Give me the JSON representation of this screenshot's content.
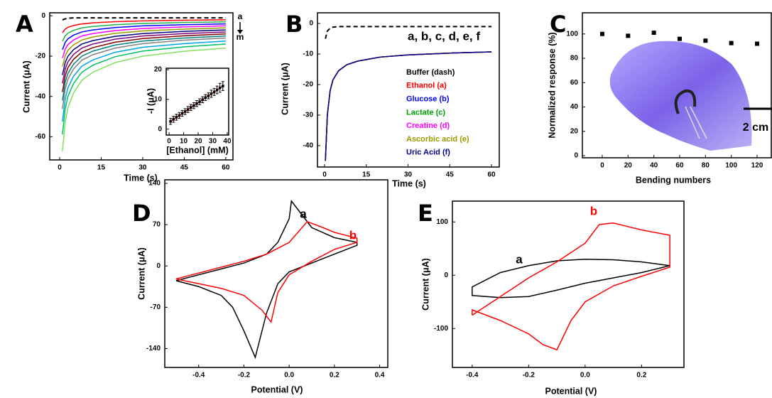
{
  "chart_data": [
    {
      "type": "line",
      "panel": "A",
      "xlabel": "Time (s)",
      "ylabel": "Current (μA)",
      "xlim": [
        -3.6,
        62.6
      ],
      "ylim": [
        -71.5,
        1.5
      ],
      "xticks": [
        0,
        15,
        30,
        45,
        60
      ],
      "yticks": [
        0,
        -20,
        -40,
        -60
      ],
      "x": [
        1,
        2,
        3,
        5,
        8,
        12,
        20,
        30,
        45,
        60
      ],
      "series": [
        {
          "color": "#000000",
          "dash": true,
          "values": [
            -2,
            -1.5,
            -1.2,
            -1,
            -1,
            -1,
            -1,
            -1,
            -1,
            -1
          ]
        },
        {
          "color": "#ff0000",
          "values": [
            -8.4,
            -6.6,
            -5.7,
            -4.8,
            -4.0,
            -3.5,
            -2.9,
            -2.5,
            -2.2,
            -2
          ]
        },
        {
          "color": "#22b14c",
          "values": [
            -12.6,
            -9.9,
            -8.6,
            -7.2,
            -6.0,
            -5.3,
            -4.4,
            -3.8,
            -3.3,
            -3
          ]
        },
        {
          "color": "#0000ff",
          "values": [
            -16.8,
            -13.2,
            -11.4,
            -9.6,
            -8.0,
            -7.0,
            -5.8,
            -5.0,
            -4.4,
            -4
          ]
        },
        {
          "color": "#ff00ff",
          "values": [
            -21,
            -16.5,
            -14.3,
            -12,
            -10,
            -8.8,
            -7.3,
            -6.3,
            -5.5,
            -5
          ]
        },
        {
          "color": "#999900",
          "values": [
            -25.2,
            -19.8,
            -17.1,
            -14.4,
            -12,
            -10.5,
            -8.7,
            -7.5,
            -6.6,
            -6
          ]
        },
        {
          "color": "#000080",
          "values": [
            -29.4,
            -23.1,
            -20,
            -16.8,
            -14,
            -12.3,
            -10.2,
            -8.8,
            -7.7,
            -7
          ]
        },
        {
          "color": "#7f007f",
          "values": [
            -33.6,
            -26.4,
            -22.8,
            -19.2,
            -16,
            -14,
            -11.6,
            -10,
            -8.8,
            -8
          ]
        },
        {
          "color": "#7f0000",
          "values": [
            -37.8,
            -29.7,
            -25.7,
            -21.6,
            -18,
            -15.8,
            -13.1,
            -11.3,
            -9.9,
            -9
          ]
        },
        {
          "color": "#008080",
          "values": [
            -42,
            -33,
            -28.5,
            -24,
            -20,
            -17.5,
            -14.5,
            -12.5,
            -11,
            -10
          ]
        },
        {
          "color": "#808080",
          "values": [
            -46.2,
            -36.3,
            -31.4,
            -26.4,
            -22,
            -19.3,
            -16,
            -13.8,
            -12.1,
            -11
          ]
        },
        {
          "color": "#00a2e8",
          "values": [
            -52.5,
            -41.3,
            -35.6,
            -30,
            -25,
            -21.9,
            -18.1,
            -15.6,
            -13.8,
            -12.5
          ]
        },
        {
          "color": "#00c060",
          "values": [
            -58.8,
            -46.2,
            -39.9,
            -33.6,
            -28,
            -24.5,
            -20.3,
            -17.5,
            -15.4,
            -14
          ]
        },
        {
          "color": "#80e060",
          "values": [
            -67.2,
            -52.8,
            -45.6,
            -38.4,
            -32,
            -28,
            -23.2,
            -20,
            -17.6,
            -16
          ]
        }
      ],
      "annotations": [
        {
          "text": "a"
        },
        {
          "text": "m"
        }
      ]
    },
    {
      "type": "scatter",
      "xlabel": "[Ethanol] (mM)",
      "ylabel": "-I (μA)",
      "xlim": [
        -2,
        41
      ],
      "ylim": [
        -2,
        20.5
      ],
      "xticks": [
        0,
        10,
        20,
        30,
        40
      ],
      "yticks": [
        0,
        10,
        20
      ],
      "x": [
        1,
        3,
        5,
        7,
        9,
        11,
        13,
        15,
        17,
        19,
        21,
        23,
        25,
        27,
        29,
        31,
        33,
        35,
        37
      ],
      "values": [
        2.6,
        3.3,
        4.0,
        4.6,
        5.3,
        5.9,
        6.6,
        7.3,
        7.9,
        8.6,
        9.2,
        9.9,
        10.6,
        11.2,
        11.9,
        12.5,
        13.2,
        13.9,
        14.5
      ],
      "errors": [
        1,
        1,
        1,
        1,
        1,
        1,
        1,
        1,
        1,
        1,
        1,
        1,
        1,
        1,
        1.2,
        1.2,
        1.3,
        1.5,
        1.5
      ],
      "color": "#000000",
      "fit": {
        "x": [
          0,
          38
        ],
        "values": [
          2.3,
          14.8
        ],
        "color": "#ff0000"
      }
    },
    {
      "type": "line",
      "panel": "B",
      "xlabel": "Time (s)",
      "ylabel": "Current (μA)",
      "xlim": [
        -2.55,
        62.8
      ],
      "ylim": [
        -47,
        3.5
      ],
      "xticks": [
        0,
        15,
        30,
        45,
        60
      ],
      "yticks": [
        0,
        -10,
        -20,
        -30,
        -40
      ],
      "x": [
        0.3,
        1,
        2,
        3,
        5,
        8,
        12,
        20,
        30,
        45,
        60
      ],
      "series": [
        {
          "name": "Buffer (dash)",
          "color": "#000000",
          "dash": true,
          "values": [
            -5,
            -2.5,
            -1.5,
            -1.2,
            -1,
            -1,
            -1,
            -1,
            -1,
            -1,
            -1
          ]
        },
        {
          "name": "Ethanol (a)",
          "color": "#ff0000",
          "values": [
            -45,
            -30,
            -22,
            -18.5,
            -15.5,
            -13.5,
            -12.3,
            -11,
            -10.3,
            -9.7,
            -9.3
          ]
        },
        {
          "name": "Glucose (b)",
          "color": "#0000ff",
          "values": [
            -45,
            -30,
            -22,
            -18.5,
            -15.5,
            -13.5,
            -12.3,
            -11,
            -10.3,
            -9.7,
            -9.3
          ]
        },
        {
          "name": "Lactate (c)",
          "color": "#00a000",
          "values": [
            -45,
            -30,
            -22,
            -18.5,
            -15.5,
            -13.5,
            -12.3,
            -11,
            -10.3,
            -9.7,
            -9.3
          ]
        },
        {
          "name": "Creatine (d)",
          "color": "#ff00ff",
          "values": [
            -45,
            -30,
            -22,
            -18.5,
            -15.5,
            -13.5,
            -12.3,
            -11,
            -10.3,
            -9.7,
            -9.3
          ]
        },
        {
          "name": "Ascorbic acid (e)",
          "color": "#999900",
          "values": [
            -45,
            -30,
            -22,
            -18.5,
            -15.5,
            -13.5,
            -12.3,
            -11,
            -10.3,
            -9.7,
            -9.3
          ]
        },
        {
          "name": "Uric Acid (f)",
          "color": "#000080",
          "values": [
            -45,
            -30,
            -22,
            -18.5,
            -15.5,
            -13.5,
            -12.3,
            -11,
            -10.3,
            -9.7,
            -9.3
          ]
        }
      ],
      "annotations": [
        {
          "text": "a, b, c, d, e, f"
        }
      ]
    },
    {
      "type": "scatter",
      "panel": "C",
      "xlabel": "Bending numbers",
      "ylabel": "Normalized response (%)",
      "xlim": [
        -15.4,
        131
      ],
      "ylim": [
        -1.7,
        117.4
      ],
      "xticks": [
        0,
        20,
        40,
        60,
        80,
        100,
        120
      ],
      "yticks": [
        0,
        20,
        40,
        60,
        80,
        100
      ],
      "x": [
        0,
        20,
        40,
        60,
        80,
        100,
        120
      ],
      "values": [
        100,
        98.5,
        101,
        96,
        94.5,
        92.5,
        92
      ],
      "color": "#000000",
      "annotations": [
        {
          "text": "2 cm"
        }
      ]
    },
    {
      "type": "line",
      "panel": "D",
      "xlabel": "Potential (V)",
      "ylabel": "Current (μA)",
      "xlim": [
        -0.55,
        0.436
      ],
      "ylim": [
        -172,
        146
      ],
      "xticks": [
        -0.4,
        -0.2,
        {
          "value": 0,
          "label": "0.0"
        },
        0.2,
        0.4
      ],
      "yticks": [
        -140,
        -70,
        0,
        70,
        140
      ],
      "series": [
        {
          "name": "a",
          "color": "#000000",
          "x": [
            -0.5,
            -0.4,
            -0.3,
            -0.2,
            -0.1,
            -0.05,
            0,
            0.01,
            0.05,
            0.1,
            0.2,
            0.3,
            0.3,
            0.2,
            0.1,
            0,
            -0.05,
            -0.1,
            -0.15,
            -0.2,
            -0.25,
            -0.3,
            -0.4,
            -0.5
          ],
          "values": [
            -25,
            -15,
            -5,
            5,
            20,
            40,
            80,
            110,
            90,
            65,
            48,
            40,
            35,
            20,
            5,
            -10,
            -30,
            -80,
            -155,
            -110,
            -70,
            -50,
            -35,
            -25
          ]
        },
        {
          "name": "b",
          "color": "#ff0000",
          "x": [
            -0.5,
            -0.4,
            -0.3,
            -0.2,
            -0.1,
            0,
            0.05,
            0.08,
            0.15,
            0.2,
            0.3,
            0.3,
            0.2,
            0.1,
            0,
            -0.05,
            -0.08,
            -0.12,
            -0.2,
            -0.3,
            -0.4,
            -0.5
          ],
          "values": [
            -22,
            -12,
            -2,
            8,
            20,
            40,
            62,
            75,
            65,
            57,
            47,
            40,
            28,
            8,
            -15,
            -45,
            -95,
            -75,
            -50,
            -38,
            -30,
            -22
          ]
        }
      ]
    },
    {
      "type": "line",
      "panel": "E",
      "xlabel": "Potential (V)",
      "ylabel": "Current (μA)",
      "xlim": [
        -0.47,
        0.35
      ],
      "ylim": [
        -173,
        139
      ],
      "xticks": [
        -0.4,
        -0.2,
        {
          "value": 0,
          "label": "0.0"
        },
        0.2
      ],
      "yticks": [
        -100,
        0,
        100
      ],
      "series": [
        {
          "name": "a",
          "color": "#000000",
          "x": [
            0.3,
            0.2,
            0.1,
            0,
            -0.1,
            -0.2,
            -0.3,
            -0.4,
            -0.4,
            -0.3,
            -0.2,
            -0.1,
            0,
            0.1,
            0.2,
            0.3
          ],
          "values": [
            18,
            25,
            29,
            30,
            27,
            18,
            5,
            -22,
            -38,
            -42,
            -40,
            -28,
            -15,
            -5,
            5,
            18
          ]
        },
        {
          "name": "b",
          "color": "#ff0000",
          "x": [
            -0.4,
            -0.3,
            -0.2,
            -0.1,
            0,
            0.05,
            0.1,
            0.2,
            0.3,
            0.3,
            0.2,
            0.1,
            0,
            -0.05,
            -0.1,
            -0.15,
            -0.2,
            -0.3,
            -0.4,
            -0.4
          ],
          "values": [
            -75,
            -40,
            -5,
            25,
            60,
            95,
            98,
            85,
            75,
            15,
            -2,
            -20,
            -50,
            -85,
            -140,
            -130,
            -110,
            -85,
            -65,
            -75
          ]
        }
      ]
    }
  ]
}
